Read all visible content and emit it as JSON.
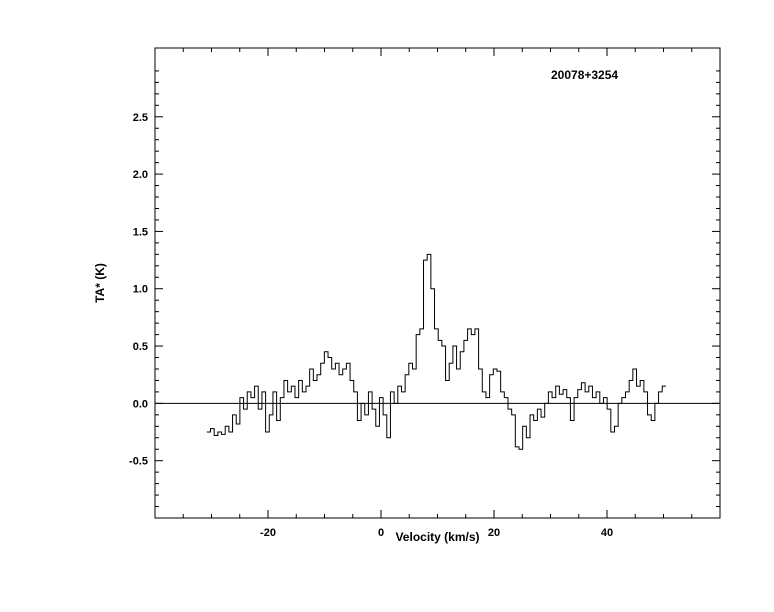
{
  "page": {
    "background_color": "#ffffff",
    "line_color": "#000000"
  },
  "chart_data": {
    "type": "line",
    "subtype": "histogram-step-spectrum",
    "title": "20078+3254",
    "xlabel": "Velocity (km/s)",
    "ylabel": "TA* (K)",
    "xlim": [
      -40,
      60
    ],
    "ylim": [
      -1.0,
      3.1
    ],
    "x_ticks": [
      -20,
      0,
      20,
      40
    ],
    "x_tick_labels": [
      "-20",
      "0",
      "20",
      "40"
    ],
    "y_ticks": [
      -0.5,
      0.0,
      0.5,
      1.0,
      1.5,
      2.0,
      2.5
    ],
    "y_tick_labels": [
      "-0.5",
      "0.0",
      "0.5",
      "1.0",
      "1.5",
      "2.0",
      "2.5"
    ],
    "x_minor_step": 5,
    "y_minor_step": 0.1,
    "grid": false,
    "legend": false,
    "zero_line": true,
    "line_color": "#000000",
    "x_start": -30.5,
    "x_step": 0.65,
    "values": [
      -0.25,
      -0.22,
      -0.28,
      -0.25,
      -0.27,
      -0.2,
      -0.25,
      -0.1,
      -0.18,
      0.05,
      -0.05,
      0.1,
      0.05,
      0.15,
      -0.05,
      0.1,
      -0.25,
      -0.1,
      0.1,
      -0.15,
      0.05,
      0.2,
      0.1,
      0.15,
      0.05,
      0.2,
      0.1,
      0.15,
      0.3,
      0.2,
      0.25,
      0.35,
      0.45,
      0.4,
      0.3,
      0.35,
      0.25,
      0.3,
      0.35,
      0.2,
      0.1,
      -0.15,
      0.0,
      -0.1,
      0.1,
      -0.05,
      -0.2,
      0.05,
      -0.1,
      -0.3,
      0.1,
      0.0,
      0.15,
      0.1,
      0.25,
      0.35,
      0.3,
      0.6,
      0.65,
      1.25,
      1.3,
      1.0,
      0.65,
      0.55,
      0.5,
      0.2,
      0.35,
      0.5,
      0.3,
      0.45,
      0.55,
      0.65,
      0.6,
      0.65,
      0.3,
      0.1,
      0.05,
      0.25,
      0.3,
      0.28,
      0.1,
      0.05,
      -0.05,
      -0.1,
      -0.38,
      -0.4,
      -0.2,
      -0.3,
      -0.1,
      -0.15,
      -0.05,
      -0.12,
      0.0,
      0.1,
      0.05,
      0.15,
      0.08,
      0.12,
      0.05,
      -0.15,
      0.05,
      0.12,
      0.18,
      0.1,
      0.15,
      0.05,
      0.1,
      0.0,
      0.05,
      -0.05,
      -0.25,
      -0.2,
      0.0,
      0.05,
      0.1,
      0.2,
      0.3,
      0.15,
      0.2,
      0.1,
      -0.1,
      -0.15,
      0.0,
      0.1,
      0.15
    ]
  }
}
